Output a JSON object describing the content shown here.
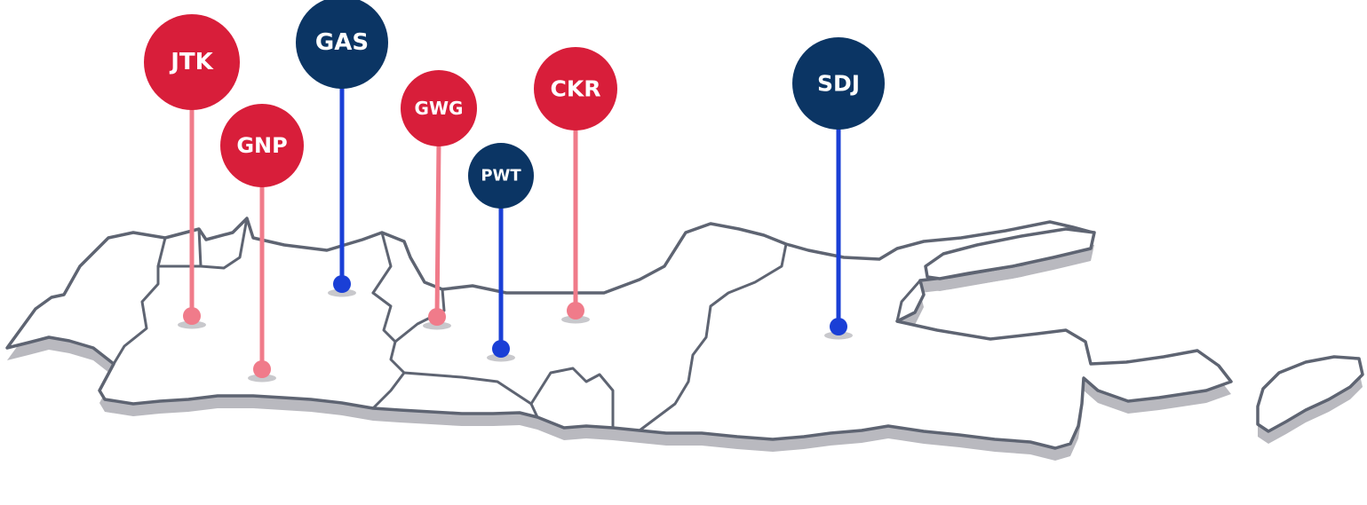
{
  "colors": {
    "red_pin": "#d81e3a",
    "red_line": "#f07b8a",
    "navy_pin": "#0b3564",
    "blue_line": "#1a3fd6",
    "map_outline": "#5e6472",
    "map_fill": "#ffffff",
    "map_shadow": "#b9b9bf"
  },
  "pins": [
    {
      "id": "JTK",
      "label": "JTK",
      "color": "red"
    },
    {
      "id": "GNP",
      "label": "GNP",
      "color": "red"
    },
    {
      "id": "GAS",
      "label": "GAS",
      "color": "navy"
    },
    {
      "id": "GWG",
      "label": "GWG",
      "color": "red"
    },
    {
      "id": "PWT",
      "label": "PWT",
      "color": "navy"
    },
    {
      "id": "CKR",
      "label": "CKR",
      "color": "red"
    },
    {
      "id": "SDJ",
      "label": "SDJ",
      "color": "navy"
    }
  ]
}
